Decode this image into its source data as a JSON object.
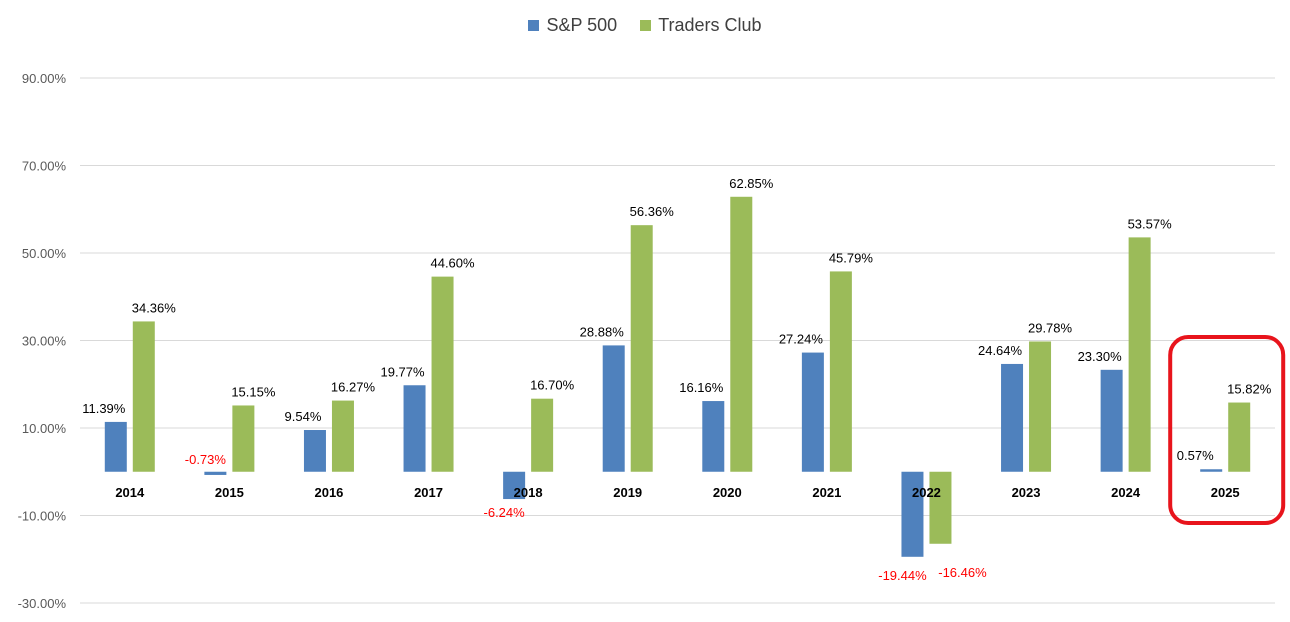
{
  "chart_data": {
    "type": "bar",
    "categories": [
      "2014",
      "2015",
      "2016",
      "2017",
      "2018",
      "2019",
      "2020",
      "2021",
      "2022",
      "2023",
      "2024",
      "2025"
    ],
    "series": [
      {
        "name": "S&P 500",
        "color": "#4f81bd",
        "values": [
          11.39,
          -0.73,
          9.54,
          19.77,
          -6.24,
          28.88,
          16.16,
          27.24,
          -19.44,
          24.64,
          23.3,
          0.57
        ],
        "labels": [
          "11.39%",
          "-0.73%",
          "9.54%",
          "19.77%",
          "-6.24%",
          "28.88%",
          "16.16%",
          "27.24%",
          "-19.44%",
          "24.64%",
          "23.30%",
          "0.57%"
        ]
      },
      {
        "name": "Traders Club",
        "color": "#9bbb59",
        "values": [
          34.36,
          15.15,
          16.27,
          44.6,
          16.7,
          56.36,
          62.85,
          45.79,
          -16.46,
          29.78,
          53.57,
          15.82
        ],
        "labels": [
          "34.36%",
          "15.15%",
          "16.27%",
          "44.60%",
          "16.70%",
          "56.36%",
          "62.85%",
          "45.79%",
          "-16.46%",
          "29.78%",
          "53.57%",
          "15.82%"
        ]
      }
    ],
    "y_ticks": [
      90,
      70,
      50,
      30,
      10,
      -10,
      -30
    ],
    "y_tick_labels": [
      "90.00%",
      "70.00%",
      "50.00%",
      "30.00%",
      "10.00%",
      "-10.00%",
      "-30.00%"
    ],
    "ylim": [
      -30,
      90
    ],
    "grid": true,
    "legend_position": "top-center",
    "negative_label_color": "#ff0000",
    "highlight": {
      "category": "2025",
      "color": "#e8141c"
    }
  }
}
